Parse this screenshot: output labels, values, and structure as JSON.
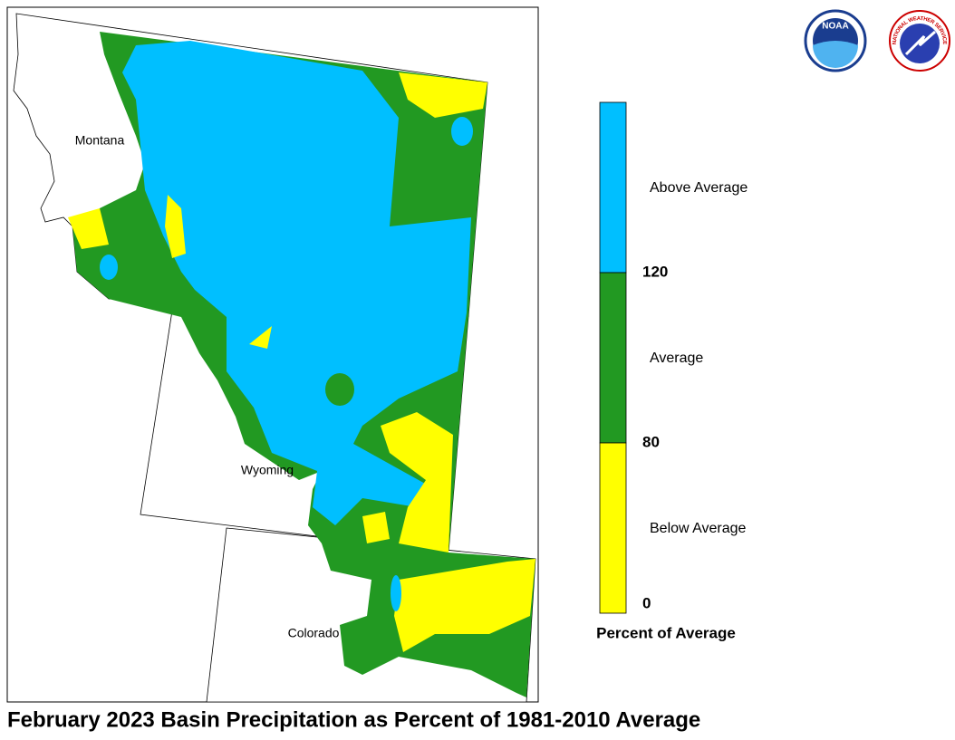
{
  "title": "February 2023 Basin Precipitation as Percent of 1981-2010 Average",
  "logos": {
    "noaa": "NOAA",
    "nws": "NATIONAL WEATHER SERVICE"
  },
  "map": {
    "states": [
      {
        "label": "Montana"
      },
      {
        "label": "Wyoming"
      },
      {
        "label": "Colorado"
      }
    ]
  },
  "legend": {
    "title": "Percent of Average",
    "items": [
      {
        "label": "Above Average",
        "color": "#00bfff"
      },
      {
        "label": "Average",
        "color": "#229922"
      },
      {
        "label": "Below Average",
        "color": "#ffff00"
      }
    ],
    "ticks": [
      120,
      80,
      0
    ]
  }
}
